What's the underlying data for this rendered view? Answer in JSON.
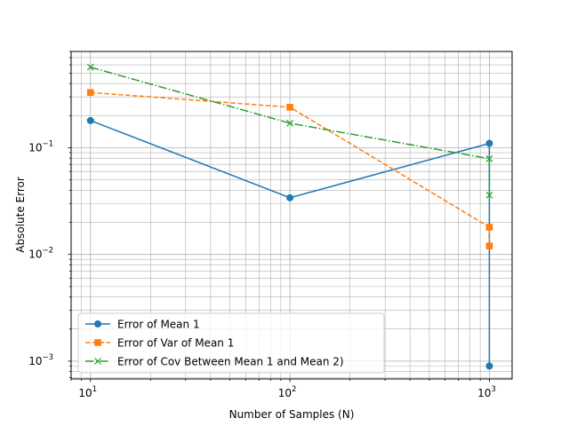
{
  "chart_data": {
    "type": "line",
    "title": "",
    "xlabel": "Number of Samples (N)",
    "ylabel": "Absolute Error",
    "xscale": "log",
    "yscale": "log",
    "xlim": [
      8.0,
      1300
    ],
    "ylim": [
      0.00068,
      0.8
    ],
    "grid": "major and minor",
    "legend_position": "lower-left",
    "x_ticks": [
      {
        "value": 10,
        "base": "10",
        "exp": "1"
      },
      {
        "value": 100,
        "base": "10",
        "exp": "2"
      },
      {
        "value": 1000,
        "base": "10",
        "exp": "3"
      }
    ],
    "y_ticks": [
      {
        "value": 0.001,
        "base": "10",
        "exp": "−3"
      },
      {
        "value": 0.01,
        "base": "10",
        "exp": "−2"
      },
      {
        "value": 0.1,
        "base": "10",
        "exp": "−1"
      }
    ],
    "series": [
      {
        "name": "Error of Mean 1",
        "color": "#1f77b4",
        "marker": "circle",
        "linestyle": "solid",
        "x": [
          10,
          100,
          1000,
          1000
        ],
        "y": [
          0.18,
          0.034,
          0.11,
          0.0009
        ]
      },
      {
        "name": "Error of Var of Mean 1",
        "color": "#ff7f0e",
        "marker": "square",
        "linestyle": "dashed",
        "x": [
          10,
          100,
          1000,
          1000
        ],
        "y": [
          0.33,
          0.24,
          0.018,
          0.012
        ]
      },
      {
        "name": "Error of Cov Between Mean 1 and Mean 2)",
        "color": "#2ca02c",
        "marker": "x",
        "linestyle": "dashdot",
        "x": [
          10,
          100,
          1000,
          1000
        ],
        "y": [
          0.57,
          0.17,
          0.079,
          0.036
        ]
      }
    ]
  }
}
